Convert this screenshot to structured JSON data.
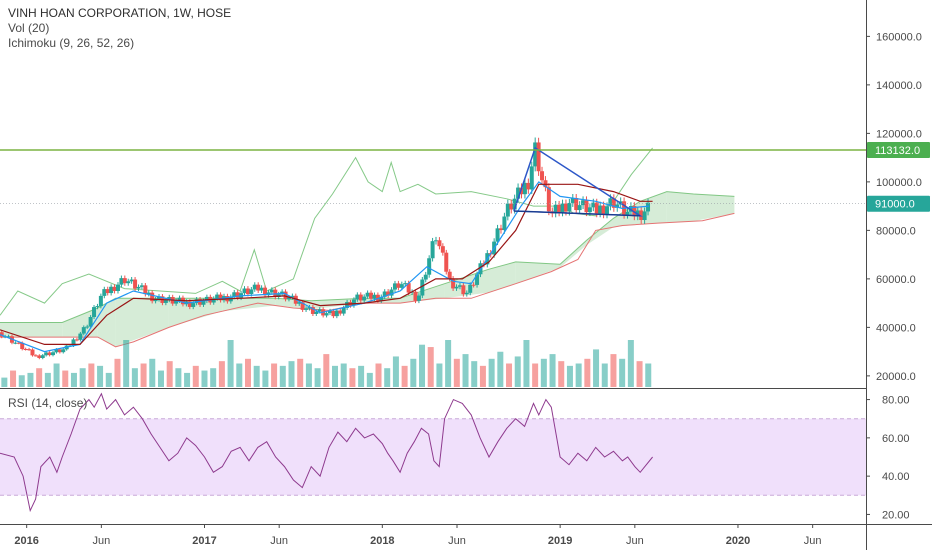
{
  "legend": {
    "title": "VINH HOAN CORPORATION, 1W, HOSE",
    "vol": "Vol (20)",
    "ichimoku": "Ichimoku (9, 26, 52, 26)",
    "rsi": "RSI (14, close)"
  },
  "colors": {
    "up": "#26a69a",
    "down": "#ef5350",
    "conversion": "#2196f3",
    "base": "#991515",
    "lagging": "#66bb6a",
    "cloud_green": "#c8e6c9",
    "cloud_red": "#f8c8c8",
    "resistance": "#7cb342",
    "triangle": "#2d57c8",
    "rsi_line": "#8e3a8e",
    "rsi_band": "#f0e0fb",
    "price_tag_resistance": "#4caf50",
    "price_tag_last": "#26a69a"
  },
  "chart_data": [
    {
      "type": "candlestick",
      "title": "VINH HOAN CORPORATION, 1W, HOSE",
      "interval": "1W",
      "exchange": "HOSE",
      "ylim": [
        15000,
        175000
      ],
      "y_ticks": [
        "20000.0",
        "40000.0",
        "60000.0",
        "80000.0",
        "100000.0",
        "120000.0",
        "140000.0",
        "160000.0"
      ],
      "x_ticks": [
        "2016",
        "Jun",
        "2017",
        "Jun",
        "2018",
        "Jun",
        "2019",
        "Jun",
        "2020",
        "Jun"
      ],
      "x_tick_times": [
        2016.0,
        2016.42,
        2017.0,
        2017.42,
        2018.0,
        2018.42,
        2019.0,
        2019.42,
        2020.0,
        2020.42
      ],
      "xlim": [
        2015.85,
        2020.72
      ],
      "trend_keypoints": [
        [
          2015.85,
          38000
        ],
        [
          2016.05,
          28000
        ],
        [
          2016.22,
          31000
        ],
        [
          2016.33,
          40000
        ],
        [
          2016.42,
          53000
        ],
        [
          2016.55,
          60000
        ],
        [
          2016.72,
          52000
        ],
        [
          2016.9,
          50000
        ],
        [
          2017.1,
          52000
        ],
        [
          2017.3,
          56000
        ],
        [
          2017.45,
          53000
        ],
        [
          2017.6,
          47000
        ],
        [
          2017.72,
          45000
        ],
        [
          2017.85,
          52000
        ],
        [
          2018.0,
          53000
        ],
        [
          2018.1,
          58000
        ],
        [
          2018.2,
          52000
        ],
        [
          2018.3,
          78000
        ],
        [
          2018.38,
          59000
        ],
        [
          2018.48,
          54000
        ],
        [
          2018.6,
          71000
        ],
        [
          2018.7,
          88000
        ],
        [
          2018.82,
          100000
        ],
        [
          2018.86,
          114000
        ],
        [
          2018.9,
          100000
        ],
        [
          2018.95,
          86000
        ],
        [
          2019.05,
          92000
        ],
        [
          2019.2,
          88000
        ],
        [
          2019.3,
          92000
        ],
        [
          2019.38,
          87000
        ],
        [
          2019.45,
          87000
        ],
        [
          2019.52,
          91000
        ]
      ],
      "last_price": 91000,
      "last_price_label": "91000.0",
      "resistance_level": 113132,
      "resistance_label": "113132.0",
      "triangle": [
        [
          2018.74,
          88000
        ],
        [
          2018.86,
          114000
        ],
        [
          2019.45,
          86000
        ]
      ],
      "triangle_base": [
        [
          2018.74,
          88000
        ],
        [
          2019.45,
          86000
        ]
      ],
      "conversion_line": [
        [
          2015.85,
          37000
        ],
        [
          2016.1,
          30000
        ],
        [
          2016.3,
          33000
        ],
        [
          2016.45,
          50000
        ],
        [
          2016.6,
          55000
        ],
        [
          2016.9,
          50000
        ],
        [
          2017.2,
          53000
        ],
        [
          2017.45,
          54000
        ],
        [
          2017.65,
          46000
        ],
        [
          2017.9,
          50000
        ],
        [
          2018.1,
          55000
        ],
        [
          2018.25,
          65000
        ],
        [
          2018.4,
          59000
        ],
        [
          2018.5,
          58000
        ],
        [
          2018.65,
          75000
        ],
        [
          2018.78,
          90000
        ],
        [
          2018.88,
          100000
        ],
        [
          2019.0,
          94000
        ],
        [
          2019.2,
          92000
        ],
        [
          2019.35,
          89000
        ],
        [
          2019.5,
          90000
        ]
      ],
      "base_line": [
        [
          2015.85,
          39000
        ],
        [
          2016.1,
          33000
        ],
        [
          2016.3,
          33000
        ],
        [
          2016.45,
          45000
        ],
        [
          2016.6,
          52000
        ],
        [
          2016.9,
          51000
        ],
        [
          2017.2,
          52000
        ],
        [
          2017.45,
          53000
        ],
        [
          2017.65,
          49000
        ],
        [
          2017.9,
          50000
        ],
        [
          2018.1,
          52000
        ],
        [
          2018.3,
          60000
        ],
        [
          2018.45,
          60000
        ],
        [
          2018.6,
          67000
        ],
        [
          2018.75,
          80000
        ],
        [
          2018.88,
          99000
        ],
        [
          2019.1,
          99000
        ],
        [
          2019.3,
          96000
        ],
        [
          2019.45,
          92000
        ],
        [
          2019.52,
          92000
        ]
      ],
      "lagging_span": [
        [
          2015.85,
          45000
        ],
        [
          2015.95,
          55000
        ],
        [
          2016.1,
          50000
        ],
        [
          2016.2,
          58000
        ],
        [
          2016.35,
          62000
        ],
        [
          2016.55,
          56000
        ],
        [
          2016.75,
          55000
        ],
        [
          2016.95,
          54000
        ],
        [
          2017.1,
          59000
        ],
        [
          2017.2,
          55000
        ],
        [
          2017.28,
          72000
        ],
        [
          2017.35,
          55000
        ],
        [
          2017.5,
          60000
        ],
        [
          2017.62,
          85000
        ],
        [
          2017.72,
          95000
        ],
        [
          2017.85,
          110000
        ],
        [
          2017.92,
          100000
        ],
        [
          2018.0,
          96000
        ],
        [
          2018.05,
          108000
        ],
        [
          2018.1,
          96000
        ],
        [
          2018.2,
          99000
        ],
        [
          2018.3,
          95000
        ],
        [
          2018.5,
          96000
        ],
        [
          2018.7,
          93000
        ],
        [
          2018.85,
          90000
        ],
        [
          2019.0,
          90000
        ],
        [
          2019.08,
          87000
        ],
        [
          2019.2,
          86000
        ],
        [
          2019.3,
          92000
        ],
        [
          2019.4,
          103000
        ],
        [
          2019.52,
          114000
        ]
      ],
      "cloud_top": [
        [
          2015.85,
          42000
        ],
        [
          2016.2,
          42000
        ],
        [
          2016.4,
          48000
        ],
        [
          2016.5,
          52000
        ],
        [
          2016.8,
          52000
        ],
        [
          2017.1,
          52000
        ],
        [
          2017.4,
          52000
        ],
        [
          2017.6,
          51000
        ],
        [
          2017.9,
          52000
        ],
        [
          2018.1,
          52000
        ],
        [
          2018.35,
          58000
        ],
        [
          2018.6,
          64000
        ],
        [
          2018.75,
          67000
        ],
        [
          2019.0,
          66000
        ],
        [
          2019.15,
          76000
        ],
        [
          2019.3,
          85000
        ],
        [
          2019.45,
          92000
        ],
        [
          2019.6,
          96000
        ],
        [
          2019.75,
          95000
        ],
        [
          2019.98,
          94000
        ]
      ],
      "cloud_bottom": [
        [
          2015.85,
          36000
        ],
        [
          2016.2,
          36000
        ],
        [
          2016.4,
          36000
        ],
        [
          2016.5,
          32000
        ],
        [
          2016.6,
          34000
        ],
        [
          2016.8,
          40000
        ],
        [
          2017.0,
          45000
        ],
        [
          2017.3,
          50000
        ],
        [
          2017.5,
          48000
        ],
        [
          2017.7,
          47000
        ],
        [
          2017.9,
          50000
        ],
        [
          2018.1,
          50000
        ],
        [
          2018.3,
          52000
        ],
        [
          2018.5,
          52000
        ],
        [
          2018.75,
          58000
        ],
        [
          2018.95,
          63000
        ],
        [
          2019.1,
          68000
        ],
        [
          2019.2,
          80000
        ],
        [
          2019.35,
          82000
        ],
        [
          2019.55,
          83000
        ],
        [
          2019.8,
          84000
        ],
        [
          2019.98,
          87000
        ]
      ]
    },
    {
      "type": "bar",
      "title": "Vol (20)",
      "series_name": "Volume",
      "relative_heights": [
        0.2,
        0.35,
        0.25,
        0.3,
        0.4,
        0.3,
        0.5,
        0.35,
        0.3,
        0.4,
        0.5,
        0.45,
        0.3,
        0.6,
        1.0,
        0.4,
        0.5,
        0.6,
        0.35,
        0.55,
        0.4,
        0.3,
        0.45,
        0.35,
        0.4,
        0.55,
        1.0,
        0.5,
        0.6,
        0.45,
        0.35,
        0.5,
        0.45,
        0.55,
        0.6,
        0.5,
        0.4,
        0.7,
        0.45,
        0.5,
        0.4,
        0.45,
        0.3,
        0.5,
        0.4,
        0.65,
        0.45,
        0.6,
        0.9,
        0.85,
        0.5,
        1.0,
        0.6,
        0.7,
        0.55,
        0.45,
        0.6,
        0.75,
        0.5,
        0.65,
        1.0,
        0.5,
        0.6,
        0.7,
        0.55,
        0.45,
        0.5,
        0.6,
        0.8,
        0.5,
        0.7,
        0.6,
        1.0,
        0.55,
        0.5
      ]
    },
    {
      "type": "line",
      "title": "RSI (14, close)",
      "ylim": [
        15,
        85
      ],
      "y_ticks": [
        "20.00",
        "40.00",
        "60.00",
        "80.00"
      ],
      "band": [
        30,
        70
      ],
      "x": [
        2015.85,
        2015.93,
        2015.98,
        2016.02,
        2016.05,
        2016.08,
        2016.13,
        2016.17,
        2016.2,
        2016.25,
        2016.3,
        2016.35,
        2016.38,
        2016.42,
        2016.45,
        2016.5,
        2016.55,
        2016.6,
        2016.65,
        2016.7,
        2016.75,
        2016.8,
        2016.85,
        2016.9,
        2016.95,
        2017.0,
        2017.05,
        2017.1,
        2017.15,
        2017.2,
        2017.25,
        2017.3,
        2017.35,
        2017.4,
        2017.45,
        2017.5,
        2017.55,
        2017.6,
        2017.65,
        2017.7,
        2017.75,
        2017.8,
        2017.85,
        2017.9,
        2017.95,
        2018.0,
        2018.03,
        2018.06,
        2018.1,
        2018.14,
        2018.18,
        2018.22,
        2018.26,
        2018.29,
        2018.32,
        2018.35,
        2018.4,
        2018.45,
        2018.5,
        2018.55,
        2018.6,
        2018.65,
        2018.7,
        2018.75,
        2018.8,
        2018.85,
        2018.88,
        2018.92,
        2018.95,
        2019.0,
        2019.05,
        2019.1,
        2019.15,
        2019.2,
        2019.25,
        2019.3,
        2019.35,
        2019.38,
        2019.42,
        2019.45,
        2019.52
      ],
      "y": [
        52,
        50,
        40,
        22,
        28,
        45,
        50,
        42,
        50,
        62,
        75,
        80,
        76,
        83,
        75,
        80,
        72,
        76,
        70,
        62,
        55,
        48,
        52,
        60,
        56,
        50,
        42,
        45,
        53,
        55,
        48,
        55,
        58,
        50,
        45,
        38,
        34,
        45,
        40,
        55,
        63,
        58,
        65,
        60,
        62,
        57,
        52,
        48,
        42,
        52,
        58,
        65,
        62,
        48,
        45,
        70,
        80,
        78,
        72,
        60,
        50,
        58,
        65,
        70,
        66,
        78,
        72,
        80,
        76,
        50,
        46,
        52,
        48,
        55,
        50,
        53,
        48,
        50,
        45,
        42,
        50
      ]
    }
  ]
}
